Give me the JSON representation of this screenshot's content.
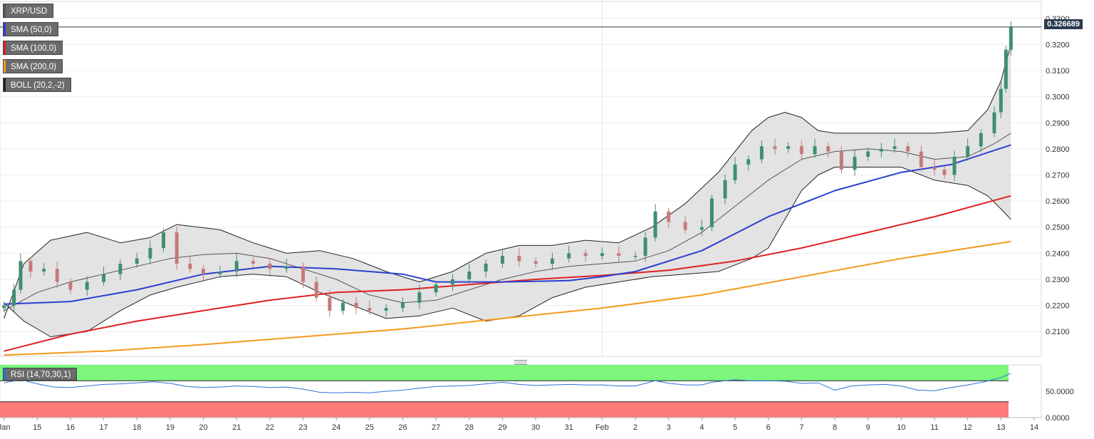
{
  "chart_data": {
    "type": "candlestick",
    "symbol": "XRP/USD",
    "last_price_label": "0.326689",
    "last_price": 0.326689,
    "indicators": [
      {
        "label": "SMA (50,0)",
        "color": "#2b3fd1"
      },
      {
        "label": "SMA (100,0)",
        "color": "#e02020"
      },
      {
        "label": "SMA (200,0)",
        "color": "#f39a1c"
      },
      {
        "label": "BOLL (20,2,-2)",
        "color": "#222222"
      }
    ],
    "ylim": [
      0.2005,
      0.3365
    ],
    "y_ticks": [
      "0.2100",
      "0.2200",
      "0.2300",
      "0.2400",
      "0.2500",
      "0.2600",
      "0.2700",
      "0.2800",
      "0.2900",
      "0.3000",
      "0.3100",
      "0.3200",
      "0.3300"
    ],
    "x_ticks": [
      "Jan",
      "15",
      "16",
      "17",
      "18",
      "19",
      "20",
      "21",
      "22",
      "23",
      "24",
      "25",
      "26",
      "27",
      "28",
      "29",
      "30",
      "31",
      "Feb",
      "2",
      "3",
      "4",
      "5",
      "6",
      "7",
      "8",
      "9",
      "10",
      "11",
      "12",
      "13",
      "14"
    ],
    "x_tick_days": [
      14,
      15,
      16,
      17,
      18,
      19,
      20,
      21,
      22,
      23,
      24,
      25,
      26,
      27,
      28,
      29,
      30,
      31,
      32,
      33,
      34,
      35,
      36,
      37,
      38,
      39,
      40,
      41,
      42,
      43,
      44,
      45
    ],
    "closes_by_day": [
      [
        14.0,
        0.22
      ],
      [
        14.3,
        0.226
      ],
      [
        14.5,
        0.237
      ],
      [
        14.8,
        0.233
      ],
      [
        15.2,
        0.234
      ],
      [
        15.6,
        0.229
      ],
      [
        16.0,
        0.226
      ],
      [
        16.5,
        0.229
      ],
      [
        17.0,
        0.232
      ],
      [
        17.5,
        0.236
      ],
      [
        18.0,
        0.238
      ],
      [
        18.4,
        0.242
      ],
      [
        18.8,
        0.248
      ],
      [
        19.2,
        0.236
      ],
      [
        19.6,
        0.234
      ],
      [
        20.0,
        0.232
      ],
      [
        20.5,
        0.233
      ],
      [
        21.0,
        0.237
      ],
      [
        21.5,
        0.236
      ],
      [
        22.0,
        0.234
      ],
      [
        22.5,
        0.235
      ],
      [
        23.0,
        0.229
      ],
      [
        23.4,
        0.223
      ],
      [
        23.8,
        0.218
      ],
      [
        24.2,
        0.221
      ],
      [
        24.6,
        0.219
      ],
      [
        25.0,
        0.218
      ],
      [
        25.5,
        0.219
      ],
      [
        26.0,
        0.221
      ],
      [
        26.5,
        0.225
      ],
      [
        27.0,
        0.228
      ],
      [
        27.5,
        0.23
      ],
      [
        28.0,
        0.233
      ],
      [
        28.5,
        0.236
      ],
      [
        29.0,
        0.239
      ],
      [
        29.5,
        0.237
      ],
      [
        30.0,
        0.236
      ],
      [
        30.5,
        0.238
      ],
      [
        31.0,
        0.24
      ],
      [
        31.5,
        0.239
      ],
      [
        32.0,
        0.24
      ],
      [
        32.5,
        0.239
      ],
      [
        33.0,
        0.239
      ],
      [
        33.3,
        0.246
      ],
      [
        33.6,
        0.256
      ],
      [
        34.0,
        0.252
      ],
      [
        34.5,
        0.249
      ],
      [
        35.0,
        0.25
      ],
      [
        35.3,
        0.261
      ],
      [
        35.7,
        0.268
      ],
      [
        36.0,
        0.274
      ],
      [
        36.4,
        0.276
      ],
      [
        36.8,
        0.281
      ],
      [
        37.2,
        0.28
      ],
      [
        37.6,
        0.281
      ],
      [
        38.0,
        0.278
      ],
      [
        38.4,
        0.281
      ],
      [
        38.8,
        0.279
      ],
      [
        39.2,
        0.272
      ],
      [
        39.6,
        0.277
      ],
      [
        40.0,
        0.279
      ],
      [
        40.4,
        0.28
      ],
      [
        40.8,
        0.281
      ],
      [
        41.2,
        0.279
      ],
      [
        41.6,
        0.273
      ],
      [
        42.0,
        0.272
      ],
      [
        42.3,
        0.27
      ],
      [
        42.6,
        0.277
      ],
      [
        43.0,
        0.281
      ],
      [
        43.4,
        0.286
      ],
      [
        43.8,
        0.294
      ],
      [
        44.0,
        0.303
      ],
      [
        44.15,
        0.318
      ],
      [
        44.3,
        0.3267
      ]
    ],
    "sma_50": [
      [
        14.0,
        0.2205
      ],
      [
        16.0,
        0.2215
      ],
      [
        18.0,
        0.226
      ],
      [
        20.0,
        0.232
      ],
      [
        22.0,
        0.235
      ],
      [
        24.0,
        0.234
      ],
      [
        26.0,
        0.232
      ],
      [
        27.0,
        0.229
      ],
      [
        29.0,
        0.229
      ],
      [
        31.0,
        0.2295
      ],
      [
        32.0,
        0.231
      ],
      [
        33.0,
        0.233
      ],
      [
        35.0,
        0.241
      ],
      [
        37.0,
        0.254
      ],
      [
        39.0,
        0.264
      ],
      [
        41.0,
        0.271
      ],
      [
        42.5,
        0.274
      ],
      [
        44.3,
        0.2815
      ]
    ],
    "sma_100": [
      [
        14.0,
        0.2025
      ],
      [
        16.0,
        0.209
      ],
      [
        18.0,
        0.214
      ],
      [
        20.0,
        0.218
      ],
      [
        22.0,
        0.222
      ],
      [
        24.0,
        0.225
      ],
      [
        26.0,
        0.226
      ],
      [
        28.0,
        0.228
      ],
      [
        30.0,
        0.23
      ],
      [
        32.0,
        0.2315
      ],
      [
        34.0,
        0.2335
      ],
      [
        36.0,
        0.237
      ],
      [
        38.0,
        0.242
      ],
      [
        40.0,
        0.248
      ],
      [
        42.0,
        0.254
      ],
      [
        44.3,
        0.262
      ]
    ],
    "sma_200": [
      [
        14.0,
        0.201
      ],
      [
        17.0,
        0.2025
      ],
      [
        20.0,
        0.205
      ],
      [
        23.0,
        0.208
      ],
      [
        26.0,
        0.211
      ],
      [
        29.0,
        0.215
      ],
      [
        32.0,
        0.219
      ],
      [
        35.0,
        0.224
      ],
      [
        38.0,
        0.231
      ],
      [
        41.0,
        0.238
      ],
      [
        44.3,
        0.2445
      ]
    ],
    "boll_upper": [
      [
        14.0,
        0.215
      ],
      [
        14.6,
        0.236
      ],
      [
        15.4,
        0.245
      ],
      [
        16.5,
        0.248
      ],
      [
        17.5,
        0.244
      ],
      [
        18.4,
        0.246
      ],
      [
        19.2,
        0.251
      ],
      [
        20.5,
        0.249
      ],
      [
        21.5,
        0.244
      ],
      [
        22.5,
        0.24
      ],
      [
        23.5,
        0.241
      ],
      [
        24.5,
        0.238
      ],
      [
        25.5,
        0.233
      ],
      [
        26.5,
        0.229
      ],
      [
        27.5,
        0.233
      ],
      [
        28.5,
        0.24
      ],
      [
        29.5,
        0.243
      ],
      [
        30.5,
        0.243
      ],
      [
        31.5,
        0.245
      ],
      [
        32.5,
        0.244
      ],
      [
        33.5,
        0.25
      ],
      [
        34.5,
        0.259
      ],
      [
        35.5,
        0.271
      ],
      [
        36.5,
        0.287
      ],
      [
        37.0,
        0.292
      ],
      [
        37.5,
        0.294
      ],
      [
        38.0,
        0.292
      ],
      [
        38.5,
        0.287
      ],
      [
        39.0,
        0.286
      ],
      [
        40.0,
        0.286
      ],
      [
        41.0,
        0.286
      ],
      [
        42.0,
        0.286
      ],
      [
        43.0,
        0.287
      ],
      [
        43.6,
        0.295
      ],
      [
        44.0,
        0.306
      ],
      [
        44.3,
        0.32
      ]
    ],
    "boll_mid": [
      [
        14.0,
        0.218
      ],
      [
        15.0,
        0.225
      ],
      [
        16.0,
        0.229
      ],
      [
        17.0,
        0.232
      ],
      [
        18.0,
        0.235
      ],
      [
        19.0,
        0.238
      ],
      [
        20.0,
        0.2395
      ],
      [
        21.0,
        0.24
      ],
      [
        22.0,
        0.238
      ],
      [
        23.0,
        0.234
      ],
      [
        24.0,
        0.23
      ],
      [
        25.0,
        0.224
      ],
      [
        26.0,
        0.221
      ],
      [
        27.0,
        0.222
      ],
      [
        28.0,
        0.226
      ],
      [
        29.0,
        0.23
      ],
      [
        30.0,
        0.233
      ],
      [
        31.0,
        0.235
      ],
      [
        32.0,
        0.236
      ],
      [
        33.0,
        0.237
      ],
      [
        34.0,
        0.241
      ],
      [
        35.0,
        0.248
      ],
      [
        36.0,
        0.258
      ],
      [
        37.0,
        0.268
      ],
      [
        38.0,
        0.276
      ],
      [
        39.0,
        0.279
      ],
      [
        40.0,
        0.28
      ],
      [
        41.0,
        0.279
      ],
      [
        42.0,
        0.276
      ],
      [
        43.0,
        0.277
      ],
      [
        43.8,
        0.282
      ],
      [
        44.3,
        0.286
      ]
    ],
    "boll_lower": [
      [
        14.0,
        0.221
      ],
      [
        14.6,
        0.214
      ],
      [
        15.4,
        0.208
      ],
      [
        16.5,
        0.21
      ],
      [
        17.5,
        0.218
      ],
      [
        18.4,
        0.224
      ],
      [
        19.2,
        0.227
      ],
      [
        20.5,
        0.231
      ],
      [
        21.5,
        0.232
      ],
      [
        22.5,
        0.231
      ],
      [
        23.5,
        0.225
      ],
      [
        24.5,
        0.22
      ],
      [
        25.5,
        0.215
      ],
      [
        26.5,
        0.216
      ],
      [
        27.5,
        0.219
      ],
      [
        28.5,
        0.214
      ],
      [
        29.5,
        0.216
      ],
      [
        30.5,
        0.223
      ],
      [
        31.5,
        0.227
      ],
      [
        32.5,
        0.229
      ],
      [
        33.5,
        0.231
      ],
      [
        34.5,
        0.232
      ],
      [
        35.5,
        0.233
      ],
      [
        36.5,
        0.238
      ],
      [
        37.0,
        0.242
      ],
      [
        37.5,
        0.253
      ],
      [
        38.0,
        0.264
      ],
      [
        38.5,
        0.27
      ],
      [
        39.0,
        0.273
      ],
      [
        40.0,
        0.273
      ],
      [
        41.0,
        0.273
      ],
      [
        42.0,
        0.268
      ],
      [
        43.0,
        0.266
      ],
      [
        43.6,
        0.262
      ],
      [
        44.0,
        0.257
      ],
      [
        44.3,
        0.253
      ]
    ],
    "rsi": {
      "label": "RSI (14,70,30,1)",
      "overbought_fill": "#7cf77c",
      "oversold_fill": "#ff7a7a",
      "ylim": [
        0,
        100
      ],
      "y_ticks": [
        "0.0000",
        "50.0000"
      ],
      "values": [
        [
          14.0,
          66
        ],
        [
          14.5,
          72
        ],
        [
          15.0,
          64
        ],
        [
          15.5,
          58
        ],
        [
          16.0,
          57
        ],
        [
          16.5,
          60
        ],
        [
          17.0,
          63
        ],
        [
          17.5,
          64
        ],
        [
          18.0,
          66
        ],
        [
          18.5,
          68
        ],
        [
          19.0,
          65
        ],
        [
          19.5,
          59
        ],
        [
          20.0,
          57
        ],
        [
          20.5,
          58
        ],
        [
          21.0,
          60
        ],
        [
          21.5,
          59
        ],
        [
          22.0,
          57
        ],
        [
          22.5,
          58
        ],
        [
          23.0,
          54
        ],
        [
          23.5,
          48
        ],
        [
          24.0,
          47
        ],
        [
          24.5,
          48
        ],
        [
          25.0,
          47
        ],
        [
          25.5,
          50
        ],
        [
          26.0,
          52
        ],
        [
          26.5,
          56
        ],
        [
          27.0,
          59
        ],
        [
          27.5,
          60
        ],
        [
          28.0,
          61
        ],
        [
          28.5,
          64
        ],
        [
          29.0,
          67
        ],
        [
          29.5,
          63
        ],
        [
          30.0,
          61
        ],
        [
          30.5,
          62
        ],
        [
          31.0,
          63
        ],
        [
          31.5,
          62
        ],
        [
          32.0,
          62
        ],
        [
          32.5,
          60
        ],
        [
          33.0,
          60
        ],
        [
          33.3,
          65
        ],
        [
          33.6,
          70
        ],
        [
          34.0,
          65
        ],
        [
          34.5,
          62
        ],
        [
          35.0,
          62
        ],
        [
          35.3,
          67
        ],
        [
          35.7,
          70
        ],
        [
          36.0,
          72
        ],
        [
          36.5,
          70
        ],
        [
          37.0,
          70
        ],
        [
          37.5,
          69
        ],
        [
          38.0,
          65
        ],
        [
          38.5,
          66
        ],
        [
          39.0,
          52
        ],
        [
          39.5,
          60
        ],
        [
          40.0,
          62
        ],
        [
          40.5,
          63
        ],
        [
          41.0,
          60
        ],
        [
          41.5,
          52
        ],
        [
          42.0,
          51
        ],
        [
          42.5,
          57
        ],
        [
          43.0,
          62
        ],
        [
          43.5,
          68
        ],
        [
          44.0,
          76
        ],
        [
          44.3,
          84
        ]
      ]
    }
  }
}
